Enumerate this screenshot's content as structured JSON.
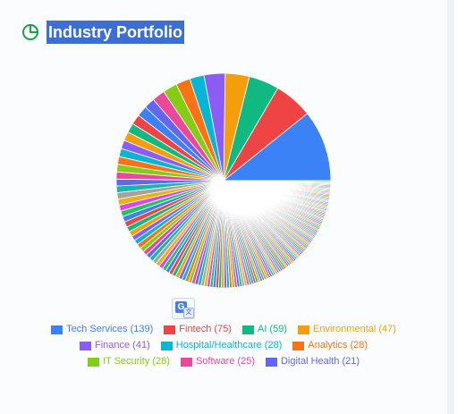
{
  "header": {
    "title": "Industry Portfolio",
    "icon": "pie-chart-icon",
    "icon_color": "#16a34a"
  },
  "translate_icon": "translate-icon",
  "chart_data": {
    "type": "pie",
    "title": "Industry Portfolio",
    "legend_position": "bottom",
    "slices": [
      {
        "label": "Tech Services",
        "value": 139,
        "color": "#3b82f6"
      },
      {
        "label": "Fintech",
        "value": 75,
        "color": "#ef4444"
      },
      {
        "label": "AI",
        "value": 59,
        "color": "#10b981"
      },
      {
        "label": "Environmental",
        "value": 47,
        "color": "#f59e0b"
      },
      {
        "label": "Finance",
        "value": 41,
        "color": "#8b5cf6"
      },
      {
        "label": "Hospital/Healthcare",
        "value": 28,
        "color": "#06b6d4"
      },
      {
        "label": "Analytics",
        "value": 28,
        "color": "#f97316"
      },
      {
        "label": "IT Security",
        "value": 28,
        "color": "#84cc16"
      },
      {
        "label": "Software",
        "value": 25,
        "color": "#ec4899"
      },
      {
        "label": "Digital Health",
        "value": 21,
        "color": "#6366f1"
      }
    ],
    "legend_rows": [
      [
        "Tech Services (139)",
        "Fintech (75)",
        "AI (59)",
        "Environmental (47)"
      ],
      [
        "Finance (41)",
        "Hospital/Healthcare (28)",
        "Analytics (28)"
      ],
      [
        "IT Security (28)",
        "Software (25)",
        "Digital Health (21)"
      ]
    ]
  }
}
